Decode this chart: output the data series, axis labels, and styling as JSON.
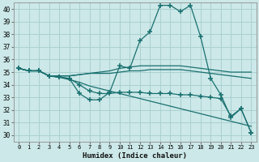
{
  "xlabel": "Humidex (Indice chaleur)",
  "xlim": [
    -0.5,
    23.5
  ],
  "ylim": [
    29.5,
    40.5
  ],
  "yticks": [
    30,
    31,
    32,
    33,
    34,
    35,
    36,
    37,
    38,
    39,
    40
  ],
  "xticks": [
    0,
    1,
    2,
    3,
    4,
    5,
    6,
    7,
    8,
    9,
    10,
    11,
    12,
    13,
    14,
    15,
    16,
    17,
    18,
    19,
    20,
    21,
    22,
    23
  ],
  "bg_color": "#cce8e8",
  "grid_color": "#aad0d0",
  "line_color": "#1a7070",
  "figsize": [
    3.2,
    2.0
  ],
  "dpi": 100,
  "lines": [
    {
      "y": [
        35.3,
        35.1,
        35.1,
        34.7,
        34.6,
        34.5,
        33.3,
        32.8,
        32.8,
        33.4,
        35.5,
        35.3,
        37.5,
        38.2,
        40.3,
        40.3,
        39.8,
        40.3,
        37.8,
        34.5,
        33.2,
        31.4,
        32.1,
        30.2
      ],
      "marker": true
    },
    {
      "y": [
        35.3,
        35.1,
        35.1,
        34.7,
        34.6,
        34.4,
        34.2,
        33.9,
        33.7,
        33.5,
        33.3,
        33.1,
        32.9,
        32.7,
        32.5,
        32.3,
        32.1,
        31.9,
        31.7,
        31.5,
        31.3,
        31.1,
        30.9,
        30.7
      ],
      "marker": false
    },
    {
      "y": [
        35.3,
        35.1,
        35.1,
        34.7,
        34.7,
        34.7,
        34.8,
        34.9,
        34.9,
        34.9,
        35.0,
        35.1,
        35.1,
        35.2,
        35.2,
        35.2,
        35.2,
        35.1,
        35.0,
        34.9,
        34.8,
        34.7,
        34.6,
        34.5
      ],
      "marker": false
    },
    {
      "y": [
        35.3,
        35.1,
        35.1,
        34.7,
        34.7,
        34.7,
        34.8,
        34.9,
        35.0,
        35.1,
        35.3,
        35.4,
        35.5,
        35.5,
        35.5,
        35.5,
        35.5,
        35.4,
        35.3,
        35.2,
        35.1,
        35.0,
        35.0,
        35.0
      ],
      "marker": false
    },
    {
      "y": [
        35.3,
        35.1,
        35.1,
        34.7,
        34.6,
        34.5,
        34.0,
        33.5,
        33.3,
        33.3,
        33.4,
        33.4,
        33.4,
        33.3,
        33.3,
        33.3,
        33.2,
        33.2,
        33.1,
        33.0,
        32.9,
        31.5,
        32.1,
        30.2
      ],
      "marker": true
    }
  ]
}
